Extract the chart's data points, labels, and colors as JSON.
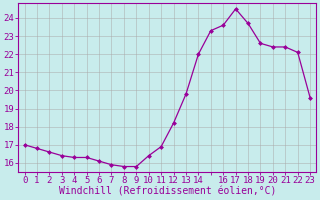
{
  "x": [
    0,
    1,
    2,
    3,
    4,
    5,
    6,
    7,
    8,
    9,
    10,
    11,
    12,
    13,
    14,
    15,
    16,
    17,
    18,
    19,
    20,
    21,
    22,
    23
  ],
  "y": [
    17.0,
    16.8,
    16.6,
    16.4,
    16.3,
    16.3,
    16.1,
    15.9,
    15.8,
    15.8,
    16.4,
    16.9,
    18.2,
    19.8,
    22.0,
    23.3,
    23.6,
    24.5,
    23.7,
    22.6,
    22.4,
    22.4,
    22.1,
    19.6
  ],
  "line_color": "#990099",
  "marker": "D",
  "marker_size": 2.5,
  "bg_color": "#c8ecec",
  "grid_color": "#aaaaaa",
  "xlabel": "Windchill (Refroidissement éolien,°C)",
  "xlabel_fontsize": 7,
  "tick_fontsize": 6.5,
  "ylim": [
    15.5,
    24.8
  ],
  "xlim": [
    -0.5,
    23.5
  ],
  "yticks": [
    16,
    17,
    18,
    19,
    20,
    21,
    22,
    23,
    24
  ],
  "xticks": [
    0,
    1,
    2,
    3,
    4,
    5,
    6,
    7,
    8,
    9,
    10,
    11,
    12,
    13,
    14,
    15,
    16,
    17,
    18,
    19,
    20,
    21,
    22,
    23
  ],
  "xtick_labels": [
    "0",
    "1",
    "2",
    "3",
    "4",
    "5",
    "6",
    "7",
    "8",
    "9",
    "10",
    "11",
    "12",
    "13",
    "14",
    "",
    "16",
    "17",
    "18",
    "19",
    "20",
    "21",
    "22",
    "23"
  ]
}
